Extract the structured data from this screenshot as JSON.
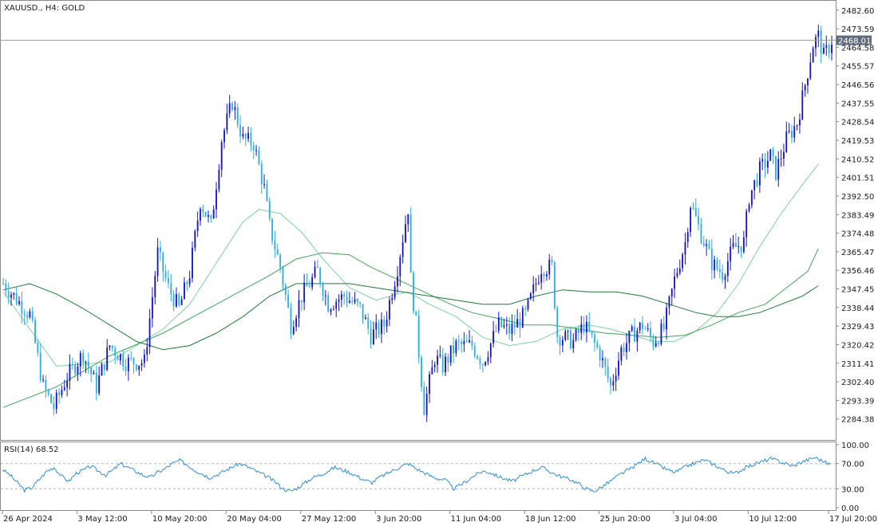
{
  "header": {
    "title": "XAUUSD., H4:  GOLD"
  },
  "price_marker": {
    "value": "2468.01",
    "color": "#5f6b7a"
  },
  "rsi_panel": {
    "title": "RSI(14) 68.52"
  },
  "colors": {
    "bull_candle": "#1515c8",
    "bear_candle": "#2ab0e6",
    "ma_fast": "#7dd3a0",
    "ma_mid": "#3ea85a",
    "ma_slow": "#1f7a3a",
    "rsi_line": "#2a8fe0",
    "level_line": "#b8b8b8"
  },
  "chart_data": [
    {
      "type": "candlestick",
      "title": "XAUUSD., H4:  GOLD",
      "ylim": [
        2275,
        2486
      ],
      "y_ticks": [
        "2482.60",
        "2473.59",
        "2464.58",
        "2455.57",
        "2446.56",
        "2437.55",
        "2428.54",
        "2419.53",
        "2410.52",
        "2401.51",
        "2392.50",
        "2383.49",
        "2374.48",
        "2365.47",
        "2356.46",
        "2347.45",
        "2338.44",
        "2329.43",
        "2320.42",
        "2311.41",
        "2302.40",
        "2293.39",
        "2284.38"
      ],
      "x_ticks": [
        "26 Apr 2024",
        "3 May 12:00",
        "10 May 20:00",
        "20 May 04:00",
        "27 May 12:00",
        "3 Jun 20:00",
        "11 Jun 04:00",
        "18 Jun 12:00",
        "25 Jun 20:00",
        "3 Jul 04:00",
        "10 Jul 12:00",
        "17 Jul 20:00"
      ],
      "close_path": [
        [
          0,
          2350
        ],
        [
          10,
          2335
        ],
        [
          15,
          2300
        ],
        [
          19,
          2290
        ],
        [
          24,
          2305
        ],
        [
          30,
          2316
        ],
        [
          35,
          2300
        ],
        [
          40,
          2320
        ],
        [
          46,
          2312
        ],
        [
          53,
          2312
        ],
        [
          58,
          2365
        ],
        [
          62,
          2348
        ],
        [
          66,
          2338
        ],
        [
          70,
          2355
        ],
        [
          74,
          2390
        ],
        [
          78,
          2378
        ],
        [
          82,
          2420
        ],
        [
          86,
          2438
        ],
        [
          90,
          2420
        ],
        [
          94,
          2418
        ],
        [
          98,
          2396
        ],
        [
          100,
          2378
        ],
        [
          104,
          2358
        ],
        [
          108,
          2330
        ],
        [
          112,
          2344
        ],
        [
          118,
          2356
        ],
        [
          122,
          2340
        ],
        [
          128,
          2344
        ],
        [
          134,
          2338
        ],
        [
          138,
          2325
        ],
        [
          143,
          2330
        ],
        [
          148,
          2358
        ],
        [
          152,
          2387
        ],
        [
          153,
          2352
        ],
        [
          155,
          2330
        ],
        [
          158,
          2290
        ],
        [
          162,
          2314
        ],
        [
          165,
          2310
        ],
        [
          170,
          2320
        ],
        [
          176,
          2320
        ],
        [
          180,
          2312
        ],
        [
          186,
          2330
        ],
        [
          190,
          2327
        ],
        [
          196,
          2335
        ],
        [
          202,
          2358
        ],
        [
          206,
          2358
        ],
        [
          208,
          2325
        ],
        [
          214,
          2322
        ],
        [
          218,
          2330
        ],
        [
          224,
          2316
        ],
        [
          228,
          2300
        ],
        [
          232,
          2318
        ],
        [
          236,
          2325
        ],
        [
          240,
          2330
        ],
        [
          244,
          2322
        ],
        [
          248,
          2328
        ],
        [
          252,
          2352
        ],
        [
          256,
          2370
        ],
        [
          258,
          2389
        ],
        [
          262,
          2374
        ],
        [
          266,
          2360
        ],
        [
          270,
          2355
        ],
        [
          274,
          2367
        ],
        [
          278,
          2370
        ],
        [
          280,
          2392
        ],
        [
          284,
          2405
        ],
        [
          288,
          2412
        ],
        [
          290,
          2404
        ],
        [
          294,
          2420
        ],
        [
          298,
          2428
        ],
        [
          300,
          2440
        ],
        [
          304,
          2466
        ],
        [
          306,
          2470
        ],
        [
          308,
          2460
        ],
        [
          310,
          2465
        ],
        [
          311,
          2468.01
        ]
      ],
      "moving_averages": [
        {
          "path": [
            [
              0,
              2346
            ],
            [
              20,
              2310
            ],
            [
              40,
              2312
            ],
            [
              60,
              2328
            ],
            [
              70,
              2340
            ],
            [
              80,
              2360
            ],
            [
              90,
              2380
            ],
            [
              96,
              2386
            ],
            [
              104,
              2384
            ],
            [
              112,
              2375
            ],
            [
              120,
              2362
            ],
            [
              130,
              2348
            ],
            [
              140,
              2342
            ],
            [
              148,
              2345
            ],
            [
              152,
              2346
            ],
            [
              160,
              2340
            ],
            [
              170,
              2334
            ],
            [
              180,
              2324
            ],
            [
              190,
              2320
            ],
            [
              200,
              2322
            ],
            [
              210,
              2328
            ],
            [
              220,
              2330
            ],
            [
              228,
              2328
            ],
            [
              236,
              2325
            ],
            [
              244,
              2322
            ],
            [
              252,
              2322
            ],
            [
              260,
              2327
            ],
            [
              268,
              2336
            ],
            [
              276,
              2350
            ],
            [
              284,
              2368
            ],
            [
              292,
              2384
            ],
            [
              300,
              2398
            ],
            [
              306,
              2408
            ]
          ]
        },
        {
          "path": [
            [
              0,
              2290
            ],
            [
              20,
              2300
            ],
            [
              40,
              2315
            ],
            [
              60,
              2326
            ],
            [
              80,
              2340
            ],
            [
              100,
              2354
            ],
            [
              110,
              2362
            ],
            [
              120,
              2365
            ],
            [
              130,
              2364
            ],
            [
              138,
              2358
            ],
            [
              148,
              2352
            ],
            [
              158,
              2346
            ],
            [
              168,
              2340
            ],
            [
              176,
              2336
            ],
            [
              186,
              2333
            ],
            [
              196,
              2330
            ],
            [
              206,
              2330
            ],
            [
              216,
              2328
            ],
            [
              226,
              2326
            ],
            [
              236,
              2325
            ],
            [
              246,
              2324
            ],
            [
              256,
              2325
            ],
            [
              266,
              2330
            ],
            [
              276,
              2336
            ],
            [
              286,
              2340
            ],
            [
              294,
              2348
            ],
            [
              302,
              2356
            ],
            [
              306,
              2367
            ]
          ]
        },
        {
          "path": [
            [
              0,
              2347
            ],
            [
              10,
              2350
            ],
            [
              20,
              2345
            ],
            [
              30,
              2338
            ],
            [
              40,
              2330
            ],
            [
              50,
              2322
            ],
            [
              60,
              2318
            ],
            [
              70,
              2320
            ],
            [
              80,
              2326
            ],
            [
              90,
              2334
            ],
            [
              100,
              2344
            ],
            [
              110,
              2350
            ],
            [
              120,
              2350
            ],
            [
              130,
              2350
            ],
            [
              140,
              2348
            ],
            [
              150,
              2346
            ],
            [
              160,
              2344
            ],
            [
              170,
              2342
            ],
            [
              180,
              2340
            ],
            [
              190,
              2340
            ],
            [
              200,
              2344
            ],
            [
              210,
              2347
            ],
            [
              220,
              2346
            ],
            [
              230,
              2346
            ],
            [
              240,
              2344
            ],
            [
              250,
              2340
            ],
            [
              260,
              2336
            ],
            [
              268,
              2334
            ],
            [
              276,
              2334
            ],
            [
              284,
              2336
            ],
            [
              292,
              2340
            ],
            [
              300,
              2344
            ],
            [
              306,
              2349
            ]
          ]
        }
      ]
    },
    {
      "type": "line",
      "title": "RSI(14) 68.52",
      "ylim": [
        0,
        100
      ],
      "y_ticks": [
        "100.00",
        "70.00",
        "30.00",
        "0.00"
      ],
      "levels": [
        70,
        30
      ],
      "series": [
        {
          "values": [
            61,
            52,
            40,
            28,
            32,
            45,
            58,
            64,
            50,
            42,
            55,
            60,
            66,
            58,
            52,
            60,
            70,
            64,
            58,
            52,
            48,
            56,
            62,
            70,
            75,
            68,
            60,
            54,
            48,
            52,
            58,
            64,
            70,
            66,
            60,
            54,
            48,
            40,
            30,
            26,
            32,
            40,
            48,
            52,
            58,
            64,
            60,
            56,
            50,
            44,
            40,
            48,
            54,
            60,
            66,
            70,
            62,
            56,
            50,
            46,
            44,
            30,
            36,
            44,
            52,
            58,
            56,
            50,
            46,
            42,
            48,
            54,
            60,
            64,
            58,
            52,
            48,
            44,
            38,
            30,
            26,
            32,
            40,
            48,
            56,
            62,
            70,
            78,
            72,
            66,
            60,
            56,
            62,
            68,
            72,
            76,
            70,
            64,
            58,
            54,
            60,
            66,
            70,
            74,
            78,
            74,
            70,
            66,
            72,
            76,
            80,
            74,
            68.52
          ]
        }
      ]
    }
  ]
}
